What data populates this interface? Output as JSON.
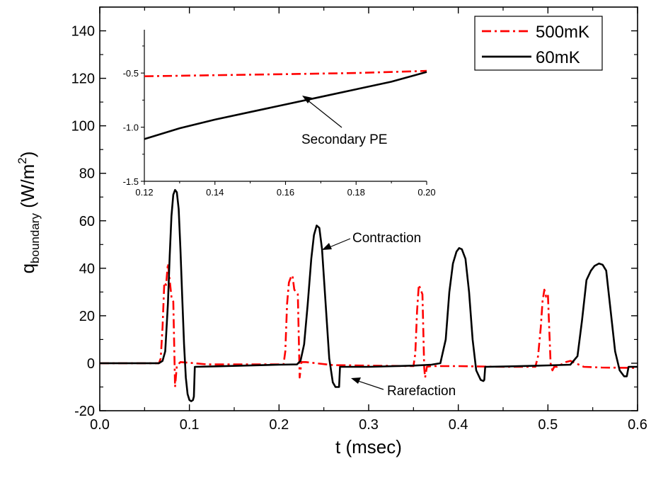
{
  "chart_data": [
    {
      "type": "line",
      "title": "",
      "xlabel": "t (msec)",
      "ylabel_main": "q",
      "ylabel_sub": "boundary",
      "ylabel_unit_pre": " (W/m",
      "ylabel_unit_sup": "2",
      "ylabel_unit_post": ")",
      "xlim": [
        0.0,
        0.6
      ],
      "ylim": [
        -20,
        150
      ],
      "xticks": [
        "0.0",
        "0.1",
        "0.2",
        "0.3",
        "0.4",
        "0.5",
        "0.6"
      ],
      "yticks": [
        "-20",
        "0",
        "20",
        "40",
        "60",
        "80",
        "100",
        "120",
        "140"
      ],
      "grid": false,
      "legend_position": "top-right",
      "series": [
        {
          "name": "500mK",
          "color": "#ff0000",
          "style": "dash-dot",
          "x": [
            0.0,
            0.066,
            0.068,
            0.07,
            0.072,
            0.074,
            0.076,
            0.078,
            0.08,
            0.082,
            0.084,
            0.086,
            0.09,
            0.1,
            0.12,
            0.15,
            0.18,
            0.205,
            0.207,
            0.209,
            0.211,
            0.213,
            0.215,
            0.217,
            0.219,
            0.221,
            0.223,
            0.225,
            0.23,
            0.26,
            0.3,
            0.35,
            0.352,
            0.354,
            0.356,
            0.358,
            0.36,
            0.362,
            0.363,
            0.365,
            0.37,
            0.4,
            0.45,
            0.486,
            0.489,
            0.492,
            0.494,
            0.496,
            0.498,
            0.5,
            0.503,
            0.505,
            0.507,
            0.51,
            0.515,
            0.52,
            0.525,
            0.54,
            0.56,
            0.6
          ],
          "y": [
            0.0,
            0.0,
            2,
            15,
            34,
            33,
            42,
            35,
            28,
            26,
            -10,
            -1,
            0.5,
            0.2,
            -0.5,
            -0.5,
            -0.5,
            -0.5,
            5,
            25,
            34,
            36,
            37,
            31,
            30,
            29,
            -6,
            0.5,
            0.5,
            -0.8,
            -1.0,
            -1.2,
            4,
            22,
            33,
            31,
            29,
            -2,
            -6,
            -1.5,
            -1.2,
            -1.2,
            -1.5,
            -1.5,
            3,
            15,
            26,
            31,
            28,
            29,
            0,
            -3,
            -1.5,
            -1.5,
            -0.5,
            0.5,
            1.0,
            -1.5,
            -1.8,
            -2.0
          ]
        },
        {
          "name": "60mK",
          "color": "#000000",
          "style": "solid",
          "x": [
            0.0,
            0.062,
            0.066,
            0.07,
            0.073,
            0.076,
            0.078,
            0.08,
            0.082,
            0.084,
            0.086,
            0.088,
            0.09,
            0.092,
            0.094,
            0.096,
            0.098,
            0.1,
            0.102,
            0.104,
            0.105,
            0.106,
            0.13,
            0.16,
            0.2,
            0.22,
            0.224,
            0.228,
            0.232,
            0.236,
            0.239,
            0.242,
            0.245,
            0.248,
            0.252,
            0.256,
            0.26,
            0.263,
            0.266,
            0.267,
            0.268,
            0.3,
            0.35,
            0.37,
            0.38,
            0.386,
            0.39,
            0.394,
            0.398,
            0.401,
            0.404,
            0.408,
            0.412,
            0.416,
            0.42,
            0.425,
            0.428,
            0.429,
            0.43,
            0.46,
            0.5,
            0.525,
            0.533,
            0.538,
            0.543,
            0.548,
            0.552,
            0.557,
            0.561,
            0.565,
            0.57,
            0.575,
            0.58,
            0.585,
            0.588,
            0.59,
            0.6
          ],
          "y": [
            0.0,
            0.0,
            0,
            1,
            5,
            25,
            45,
            62,
            71,
            73,
            72,
            65,
            48,
            28,
            8,
            -6,
            -13,
            -15.5,
            -16,
            -15.5,
            -14,
            -1.5,
            -1.3,
            -1.0,
            -0.6,
            -0.5,
            1,
            8,
            25,
            44,
            54,
            58,
            57,
            48,
            25,
            2,
            -8,
            -10,
            -10,
            -10,
            -1.5,
            -1.5,
            -1.0,
            -0.6,
            0,
            10,
            30,
            42,
            47,
            48.5,
            48,
            44,
            30,
            10,
            -3,
            -7,
            -7.5,
            -7,
            -1.5,
            -1.3,
            -0.9,
            -0.6,
            3,
            18,
            35,
            39,
            41,
            42,
            41.5,
            39,
            22,
            5,
            -3,
            -5.5,
            -5.5,
            -1.5,
            -1.5
          ]
        }
      ],
      "annotations": [
        "Contraction",
        "Rarefaction"
      ]
    },
    {
      "type": "line",
      "title": "",
      "xlabel": "",
      "ylabel": "",
      "xlim": [
        0.12,
        0.2
      ],
      "ylim": [
        -1.5,
        -0.1
      ],
      "xticks": [
        "0.12",
        "0.14",
        "0.16",
        "0.18",
        "0.20"
      ],
      "yticks": [
        "-1.5",
        "-1.0",
        "-0.5"
      ],
      "grid": false,
      "series": [
        {
          "name": "500mK",
          "color": "#ff0000",
          "style": "dash-dot",
          "x": [
            0.12,
            0.14,
            0.16,
            0.18,
            0.2
          ],
          "y": [
            -0.53,
            -0.52,
            -0.51,
            -0.5,
            -0.48
          ]
        },
        {
          "name": "60mK",
          "color": "#000000",
          "style": "solid",
          "x": [
            0.12,
            0.13,
            0.14,
            0.15,
            0.16,
            0.17,
            0.18,
            0.19,
            0.2
          ],
          "y": [
            -1.11,
            -1.01,
            -0.93,
            -0.86,
            -0.79,
            -0.72,
            -0.65,
            -0.58,
            -0.49
          ]
        }
      ],
      "annotations": [
        "Secondary PE"
      ]
    }
  ]
}
